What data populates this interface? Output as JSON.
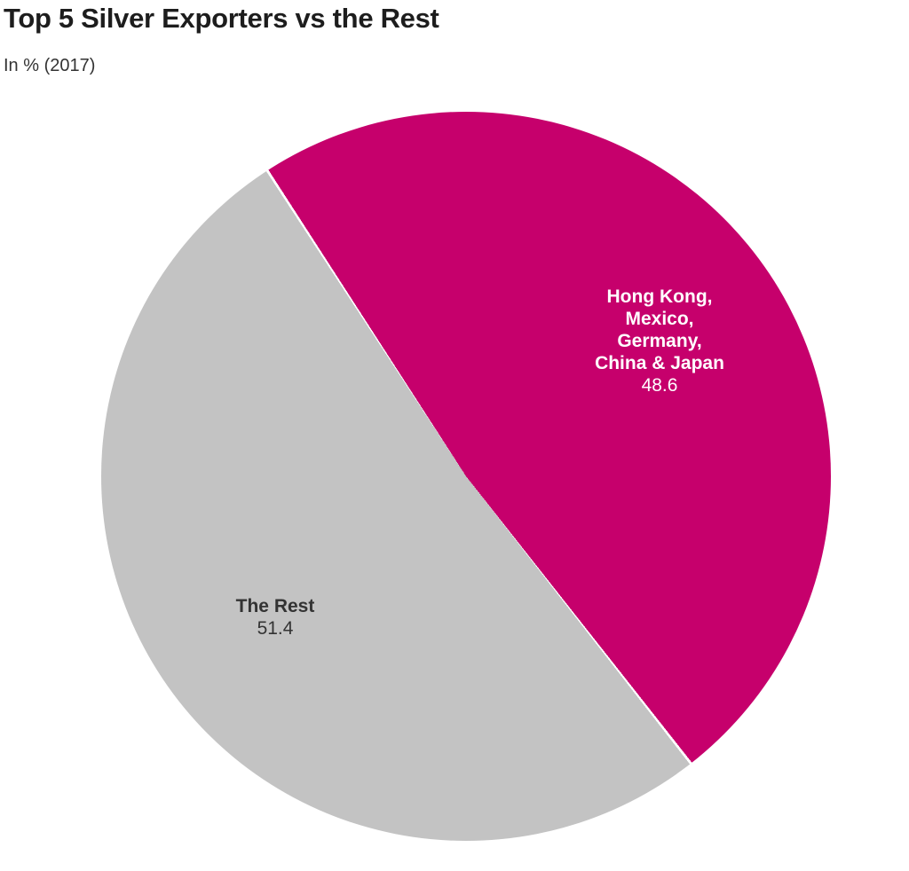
{
  "header": {
    "title": "Top 5 Silver Exporters vs the Rest",
    "subtitle": "In % (2017)"
  },
  "chart_data": {
    "type": "pie",
    "title": "Top 5 Silver Exporters vs the Rest",
    "subtitle": "In % (2017)",
    "unit": "%",
    "legend": "none",
    "labels_position": "inside",
    "direction": "clockwise",
    "start_angle_deg": -33,
    "background": "#ffffff",
    "slices": [
      {
        "label": "Hong Kong,\nMexico,\nGermany,\nChina & Japan",
        "value": 48.6,
        "color": "#c6006c",
        "text_color": "#ffffff"
      },
      {
        "label": "The Rest",
        "value": 51.4,
        "color": "#c3c3c3",
        "text_color": "#333333"
      }
    ]
  }
}
